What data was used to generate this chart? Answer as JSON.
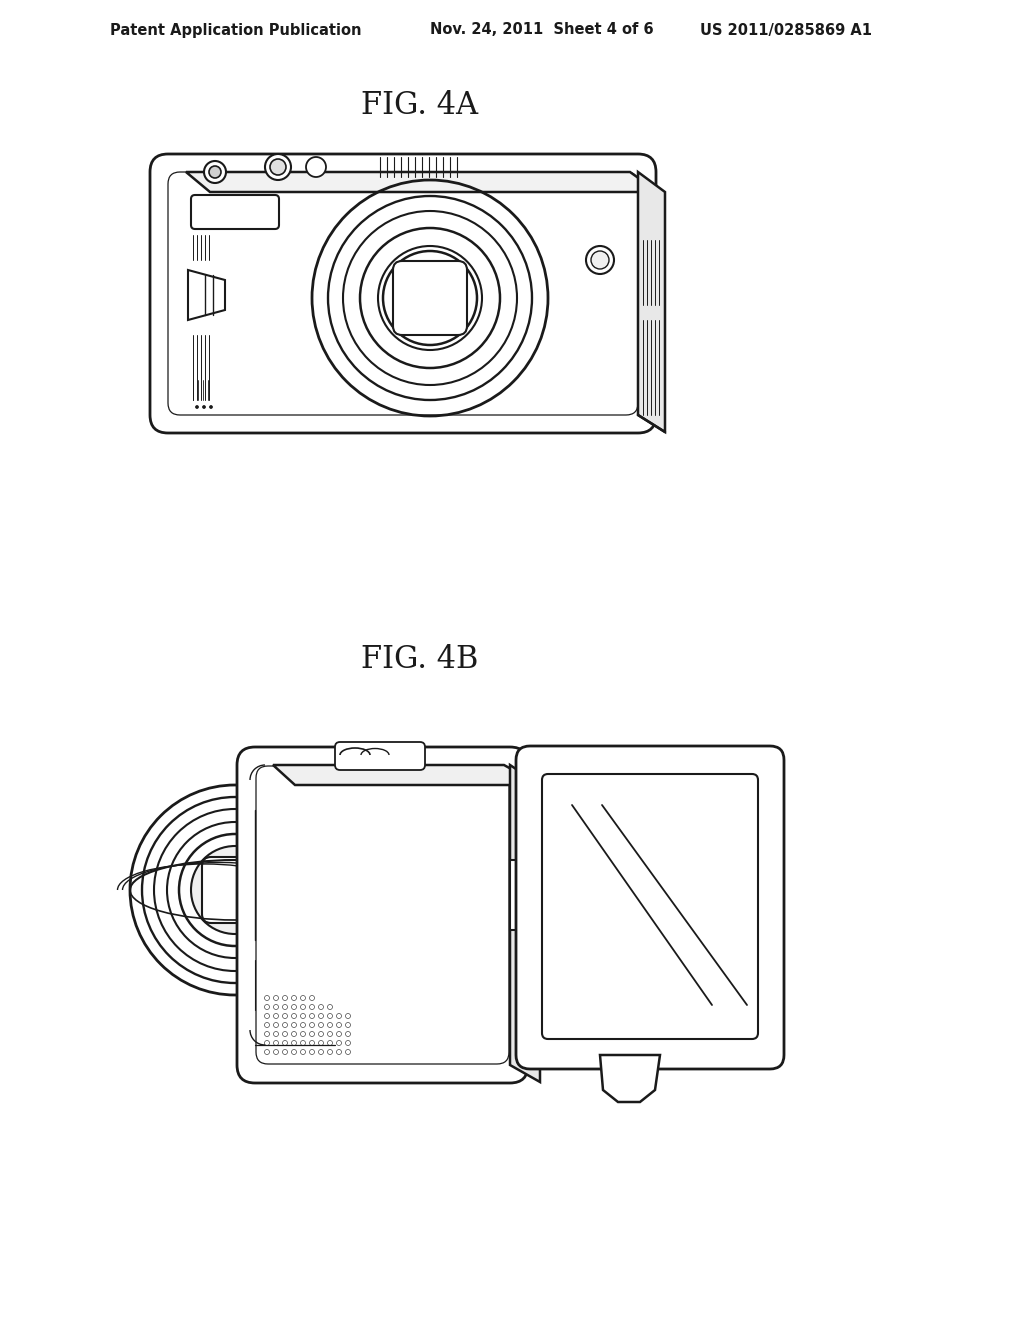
{
  "background_color": "#ffffff",
  "header_left": "Patent Application Publication",
  "header_mid": "Nov. 24, 2011  Sheet 4 of 6",
  "header_right": "US 2011/0285869 A1",
  "fig4a_label": "FIG. 4A",
  "fig4b_label": "FIG. 4B",
  "line_color": "#1a1a1a",
  "line_width": 1.6,
  "title_fontsize": 22,
  "header_fontsize": 10.5
}
